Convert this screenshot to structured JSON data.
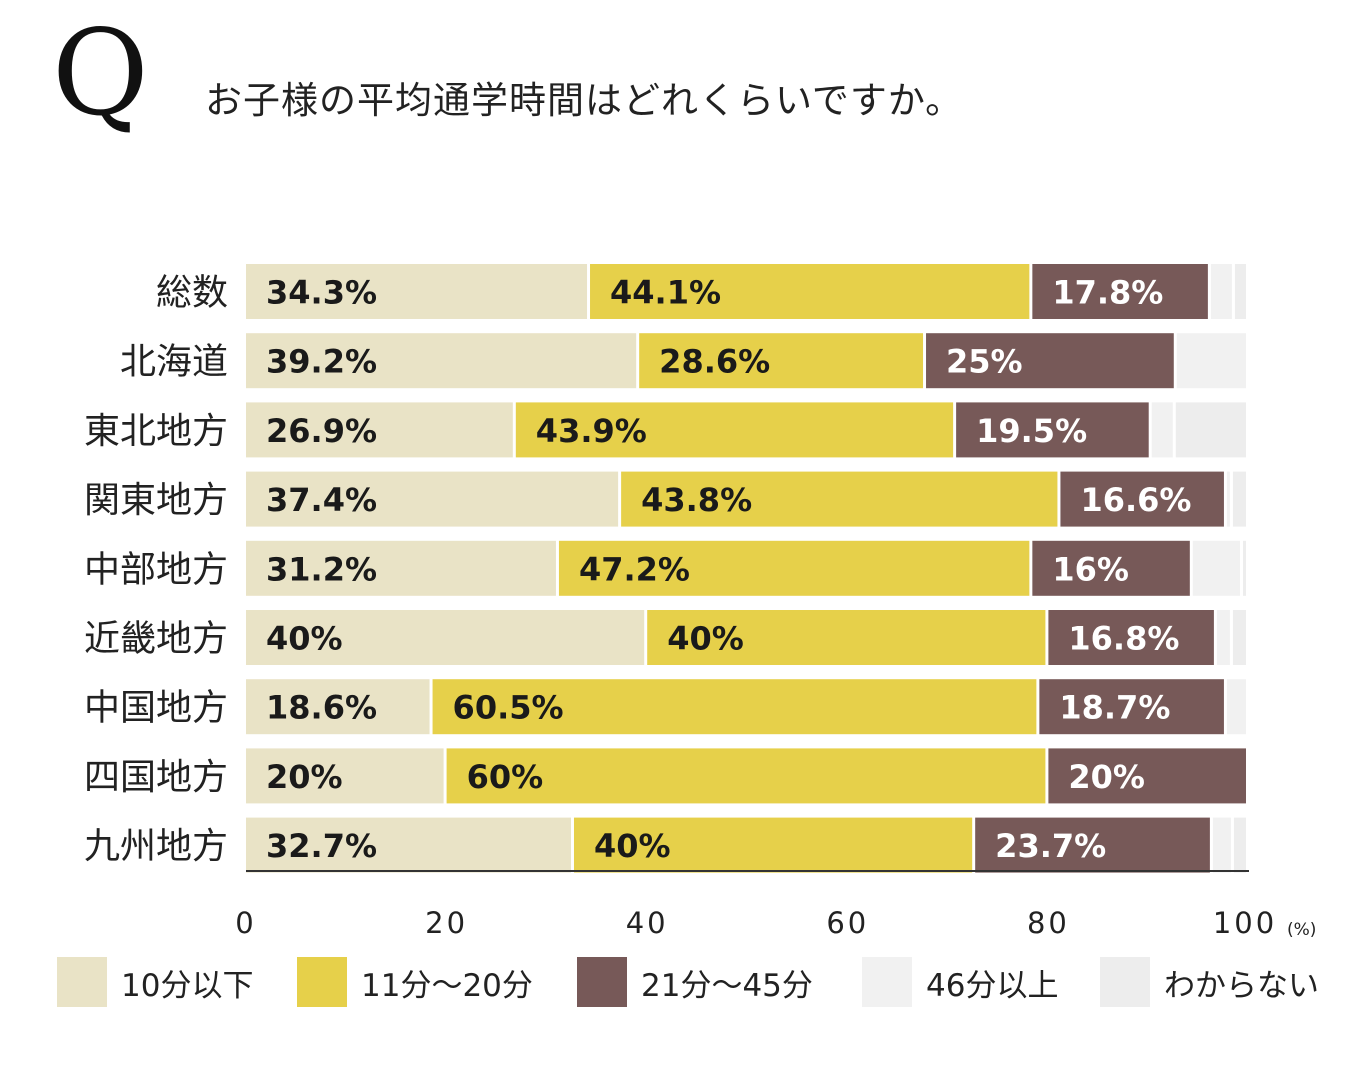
{
  "header": {
    "q_mark": "Q",
    "question": "お子様の平均通学時間はどれくらいですか。"
  },
  "chart_data": {
    "type": "stacked-bar-horizontal",
    "title": "お子様の平均通学時間はどれくらいですか。",
    "xlabel": "",
    "ylabel": "",
    "xlim": [
      0,
      100
    ],
    "x_ticks": [
      "0",
      "20",
      "40",
      "60",
      "80",
      "100"
    ],
    "x_unit": "(%)",
    "categories": [
      "総数",
      "北海道",
      "東北地方",
      "関東地方",
      "中部地方",
      "近畿地方",
      "中国地方",
      "四国地方",
      "九州地方"
    ],
    "series": [
      {
        "name": "10分以下",
        "color": "#e9e3c6",
        "values": [
          34.3,
          39.2,
          26.9,
          37.4,
          31.2,
          40,
          18.6,
          20,
          32.7
        ],
        "labels": [
          "34.3%",
          "39.2%",
          "26.9%",
          "37.4%",
          "31.2%",
          "40%",
          "18.6%",
          "20%",
          "32.7%"
        ]
      },
      {
        "name": "11分～20分",
        "color": "#e6d04a",
        "values": [
          44.1,
          28.6,
          43.9,
          43.8,
          47.2,
          40,
          60.5,
          60,
          40
        ],
        "labels": [
          "44.1%",
          "28.6%",
          "43.9%",
          "43.8%",
          "47.2%",
          "40%",
          "60.5%",
          "60%",
          "40%"
        ]
      },
      {
        "name": "21分～45分",
        "color": "#775958",
        "values": [
          17.8,
          25,
          19.5,
          16.6,
          16,
          16.8,
          18.7,
          20,
          23.7
        ],
        "labels": [
          "17.8%",
          "25%",
          "19.5%",
          "16.6%",
          "16%",
          "16.8%",
          "18.7%",
          "20%",
          "23.7%"
        ]
      },
      {
        "name": "46分以上",
        "color": "#f1f1f1",
        "values": [
          2.4,
          7.2,
          2.4,
          0.6,
          5.0,
          1.6,
          2.2,
          0,
          2.1
        ],
        "labels": [
          "",
          "",
          "",
          "",
          "",
          "",
          "",
          "",
          ""
        ]
      },
      {
        "name": "わからない",
        "color": "#ededed",
        "values": [
          1.4,
          0,
          7.3,
          1.6,
          0.6,
          1.6,
          0,
          0,
          1.5
        ],
        "labels": [
          "",
          "",
          "",
          "",
          "",
          "",
          "",
          "",
          ""
        ]
      }
    ],
    "legend_position": "bottom"
  }
}
